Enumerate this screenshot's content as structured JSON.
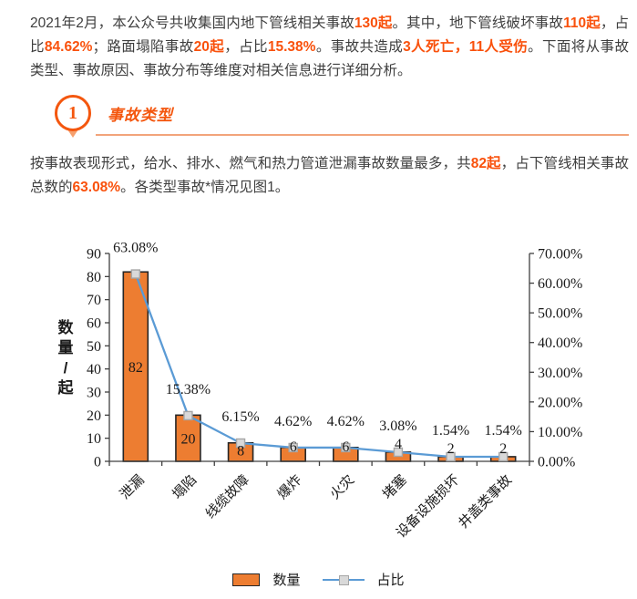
{
  "intro": {
    "segments": [
      {
        "text": "2021年2月，本公众号共收集国内地下管线相关事故",
        "highlight": false
      },
      {
        "text": "130起",
        "highlight": true
      },
      {
        "text": "。其中，地下管线破坏事故",
        "highlight": false
      },
      {
        "text": "110起",
        "highlight": true
      },
      {
        "text": "，占比",
        "highlight": false
      },
      {
        "text": "84.62%",
        "highlight": true
      },
      {
        "text": "；路面塌陷事故",
        "highlight": false
      },
      {
        "text": "20起",
        "highlight": true
      },
      {
        "text": "，占比",
        "highlight": false
      },
      {
        "text": "15.38%",
        "highlight": true
      },
      {
        "text": "。事故共造成",
        "highlight": false
      },
      {
        "text": "3人死亡，11人受伤",
        "highlight": true
      },
      {
        "text": "。下面将从事故类型、事故原因、事故分布等维度对相关信息进行详细分析。",
        "highlight": false
      }
    ]
  },
  "section": {
    "number": "1",
    "title": "事故类型"
  },
  "type_paragraph": {
    "segments": [
      {
        "text": "按事故表现形式，给水、排水、燃气和热力管道泄漏事故数量最多，共",
        "highlight": false
      },
      {
        "text": "82起",
        "highlight": true
      },
      {
        "text": "，占下管线相关事故总数的",
        "highlight": false
      },
      {
        "text": "63.08%",
        "highlight": true
      },
      {
        "text": "。各类型事故*情况见图1。",
        "highlight": false
      }
    ]
  },
  "chart_data": {
    "type": "bar",
    "categories": [
      "泄漏",
      "塌陷",
      "线缆故障",
      "爆炸",
      "火灾",
      "堵塞",
      "设备设施损坏",
      "井盖类事故"
    ],
    "series": [
      {
        "name": "数量",
        "type": "bar",
        "axis": "left",
        "values": [
          82,
          20,
          8,
          6,
          6,
          4,
          2,
          2
        ]
      },
      {
        "name": "占比",
        "type": "line",
        "axis": "right",
        "values": [
          63.08,
          15.38,
          6.15,
          4.62,
          4.62,
          3.08,
          1.54,
          1.54
        ],
        "labels": [
          "63.08%",
          "15.38%",
          "6.15%",
          "4.62%",
          "4.62%",
          "3.08%",
          "1.54%",
          "1.54%"
        ]
      }
    ],
    "left_axis": {
      "title": "数量/起",
      "min": 0,
      "max": 90,
      "step": 10,
      "ticks": [
        "90",
        "80",
        "70",
        "60",
        "50",
        "40",
        "30",
        "20",
        "10",
        "0"
      ]
    },
    "right_axis": {
      "min": 0,
      "max": 70,
      "step": 10,
      "format": "percent",
      "ticks": [
        "70.00%",
        "60.00%",
        "50.00%",
        "40.00%",
        "30.00%",
        "20.00%",
        "10.00%",
        "0.00%"
      ]
    },
    "grid": false,
    "legend_position": "bottom",
    "colors": {
      "bar_fill": "#ED7D31",
      "bar_border": "#262626",
      "line": "#5B9BD5",
      "marker_fill": "#D9D9D9",
      "marker_border": "#A6A6A6",
      "axis": "#404040"
    }
  }
}
